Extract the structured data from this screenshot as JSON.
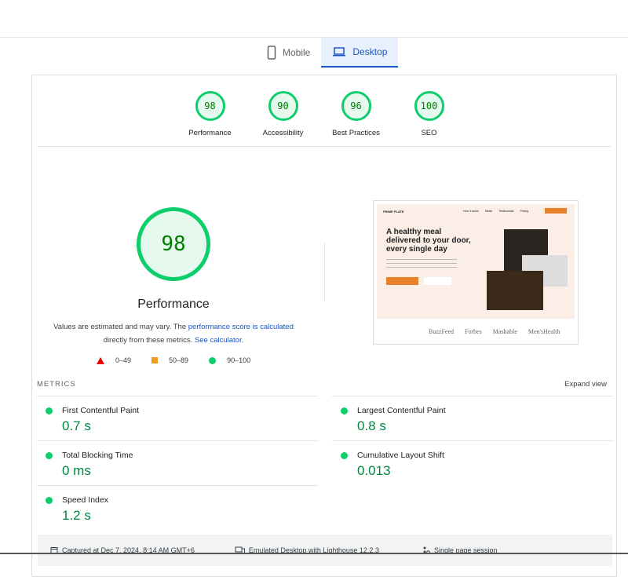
{
  "tabs": [
    {
      "label": "Mobile",
      "icon": "mobile-icon"
    },
    {
      "label": "Desktop",
      "icon": "laptop-icon",
      "active": true
    }
  ],
  "gauges": [
    {
      "score": "98",
      "label": "Performance"
    },
    {
      "score": "90",
      "label": "Accessibility"
    },
    {
      "score": "96",
      "label": "Best Practices"
    },
    {
      "score": "100",
      "label": "SEO"
    }
  ],
  "performance": {
    "score": "98",
    "title": "Performance",
    "desc1": "Values are estimated and may vary. The ",
    "link1": "performance score is calculated",
    "desc2": " directly from these metrics. ",
    "link2": "See calculator."
  },
  "legend": [
    "0–49",
    "50–89",
    "90–100"
  ],
  "screenshot": {
    "logo": "PRIME PLATE",
    "nav": [
      "How it works",
      "Meals",
      "Testimonials",
      "Pricing"
    ],
    "headline": "A healthy meal delivered to your door, every single day",
    "brands": [
      "BuzzFeed",
      "Forbes",
      "Mashable",
      "Men'sHealth"
    ]
  },
  "metrics": {
    "header": "METRICS",
    "expand": "Expand view",
    "items": [
      {
        "label": "First Contentful Paint",
        "value": "0.7 s"
      },
      {
        "label": "Largest Contentful Paint",
        "value": "0.8 s"
      },
      {
        "label": "Total Blocking Time",
        "value": "0 ms"
      },
      {
        "label": "Cumulative Layout Shift",
        "value": "0.013"
      },
      {
        "label": "Speed Index",
        "value": "1.2 s"
      }
    ]
  },
  "footer": {
    "captured": "Captured at Dec 7, 2024, 8:14 AM GMT+6",
    "emulated": "Emulated Desktop with Lighthouse 12.2.3",
    "session": "Single page session"
  },
  "colors": {
    "pass": "#0cce6b",
    "average": "#f29a1f",
    "fail": "#ff0000",
    "accent": "#1a56c4"
  }
}
